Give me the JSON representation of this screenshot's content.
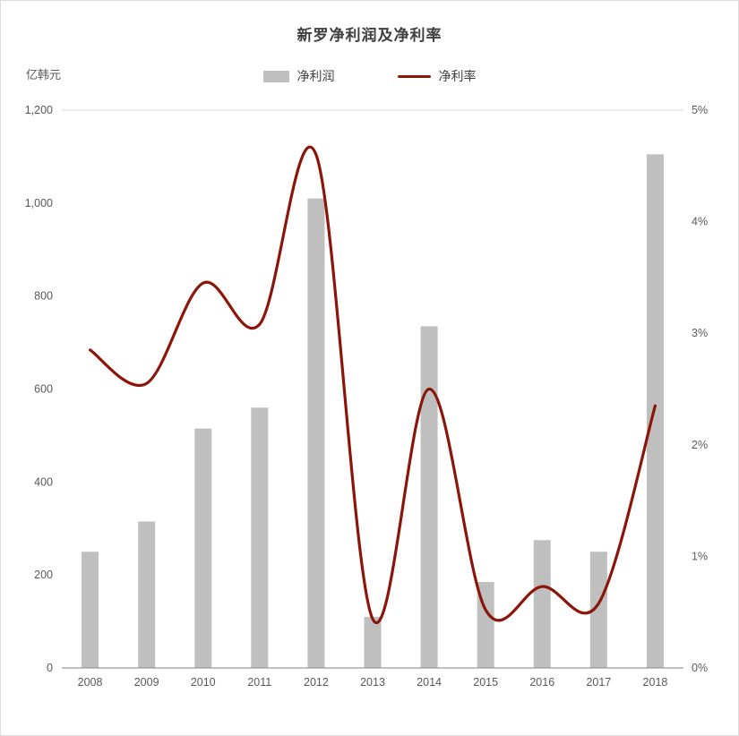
{
  "page": {
    "background": "#ffffff"
  },
  "chart_data": {
    "type": "bar+line",
    "title": "新罗净利润及净利率",
    "unit_label": "亿韩元",
    "categories": [
      "2008",
      "2009",
      "2010",
      "2011",
      "2012",
      "2013",
      "2014",
      "2015",
      "2016",
      "2017",
      "2018"
    ],
    "series": [
      {
        "name": "净利润",
        "type": "bar",
        "axis": "left",
        "color": "#bfbfbf",
        "values": [
          250,
          315,
          515,
          560,
          1010,
          110,
          735,
          185,
          275,
          250,
          1105
        ]
      },
      {
        "name": "净利率",
        "type": "line",
        "axis": "right",
        "color": "#8b1509",
        "values": [
          2.85,
          2.55,
          3.45,
          3.08,
          4.6,
          0.44,
          2.5,
          0.52,
          0.73,
          0.58,
          2.35
        ]
      }
    ],
    "left_axis": {
      "min": 0,
      "max": 1200,
      "ticks": [
        "0",
        "200",
        "400",
        "600",
        "800",
        "1,000",
        "1,200"
      ]
    },
    "right_axis": {
      "min": 0,
      "max": 5,
      "ticks": [
        "0%",
        "1%",
        "2%",
        "3%",
        "4%",
        "5%"
      ]
    },
    "legend": {
      "position": "top-center",
      "items": [
        "净利润",
        "净利率"
      ]
    },
    "grid": "top-line-and-baseline-only",
    "colors": {
      "bar": "#bfbfbf",
      "line": "#8b1509",
      "axis_text": "#595959",
      "baseline": "#9a9a9a",
      "top_gridline": "#d9d9d9",
      "title_text": "#3f3f3f"
    }
  }
}
